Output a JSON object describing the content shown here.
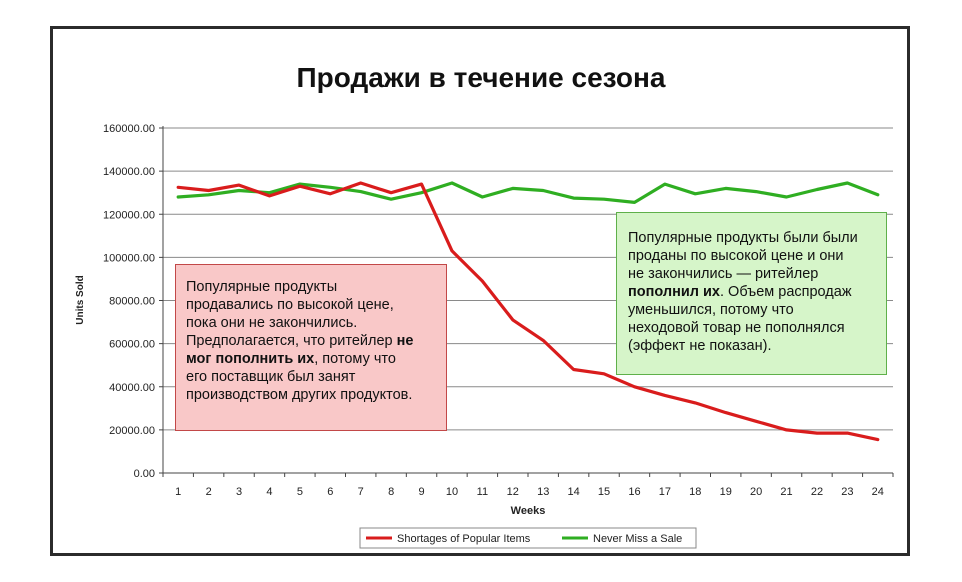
{
  "chart_data": {
    "type": "line",
    "title": "Продажи в течение сезона",
    "xlabel": "Weeks",
    "ylabel": "Units Sold",
    "ylim": [
      0,
      160000
    ],
    "yticks": [
      "0.00",
      "20000.00",
      "40000.00",
      "60000.00",
      "80000.00",
      "100000.00",
      "120000.00",
      "140000.00",
      "160000.00"
    ],
    "ytick_values": [
      0,
      20000,
      40000,
      60000,
      80000,
      100000,
      120000,
      140000,
      160000
    ],
    "x": [
      1,
      2,
      3,
      4,
      5,
      6,
      7,
      8,
      9,
      10,
      11,
      12,
      13,
      14,
      15,
      16,
      17,
      18,
      19,
      20,
      21,
      22,
      23,
      24
    ],
    "grid": true,
    "legend_position": "bottom",
    "series": [
      {
        "name": "Shortages of Popular Items",
        "color": "#d91c1c",
        "values": [
          132500,
          131000,
          133500,
          128500,
          133000,
          129500,
          134500,
          130000,
          134000,
          103000,
          89000,
          71000,
          61500,
          48000,
          46000,
          40000,
          36000,
          32500,
          28000,
          24000,
          20000,
          18500,
          18500,
          15500
        ]
      },
      {
        "name": "Never Miss a Sale",
        "color": "#2fae22",
        "values": [
          128000,
          129000,
          131000,
          130000,
          134000,
          132500,
          130500,
          127000,
          130000,
          134500,
          128000,
          132000,
          131000,
          127500,
          127000,
          125500,
          134000,
          129500,
          132000,
          130500,
          128000,
          131500,
          134500,
          129000
        ]
      }
    ]
  },
  "annotations": {
    "red": {
      "line1": "Популярные продукты",
      "line2": "продавались по высокой цене,",
      "line3": "пока они не закончились.",
      "line4a": "Предполагается, что ритейлер ",
      "line4b": "не",
      "line5a": "мог пополнить их",
      "line5b": ", потому что",
      "line6": "его поставщик был занят",
      "line7": "производством других продуктов."
    },
    "green": {
      "line1": "Популярные продукты были были",
      "line2": "проданы по высокой цене и они",
      "line3": "не закончились — ритейлер",
      "line4a": "пополнил их",
      "line4b": ". Объем распродаж",
      "line5": "уменьшился, потому что",
      "line6": "неходовой товар не пополнялся",
      "line7": "(эффект не показан)."
    }
  }
}
